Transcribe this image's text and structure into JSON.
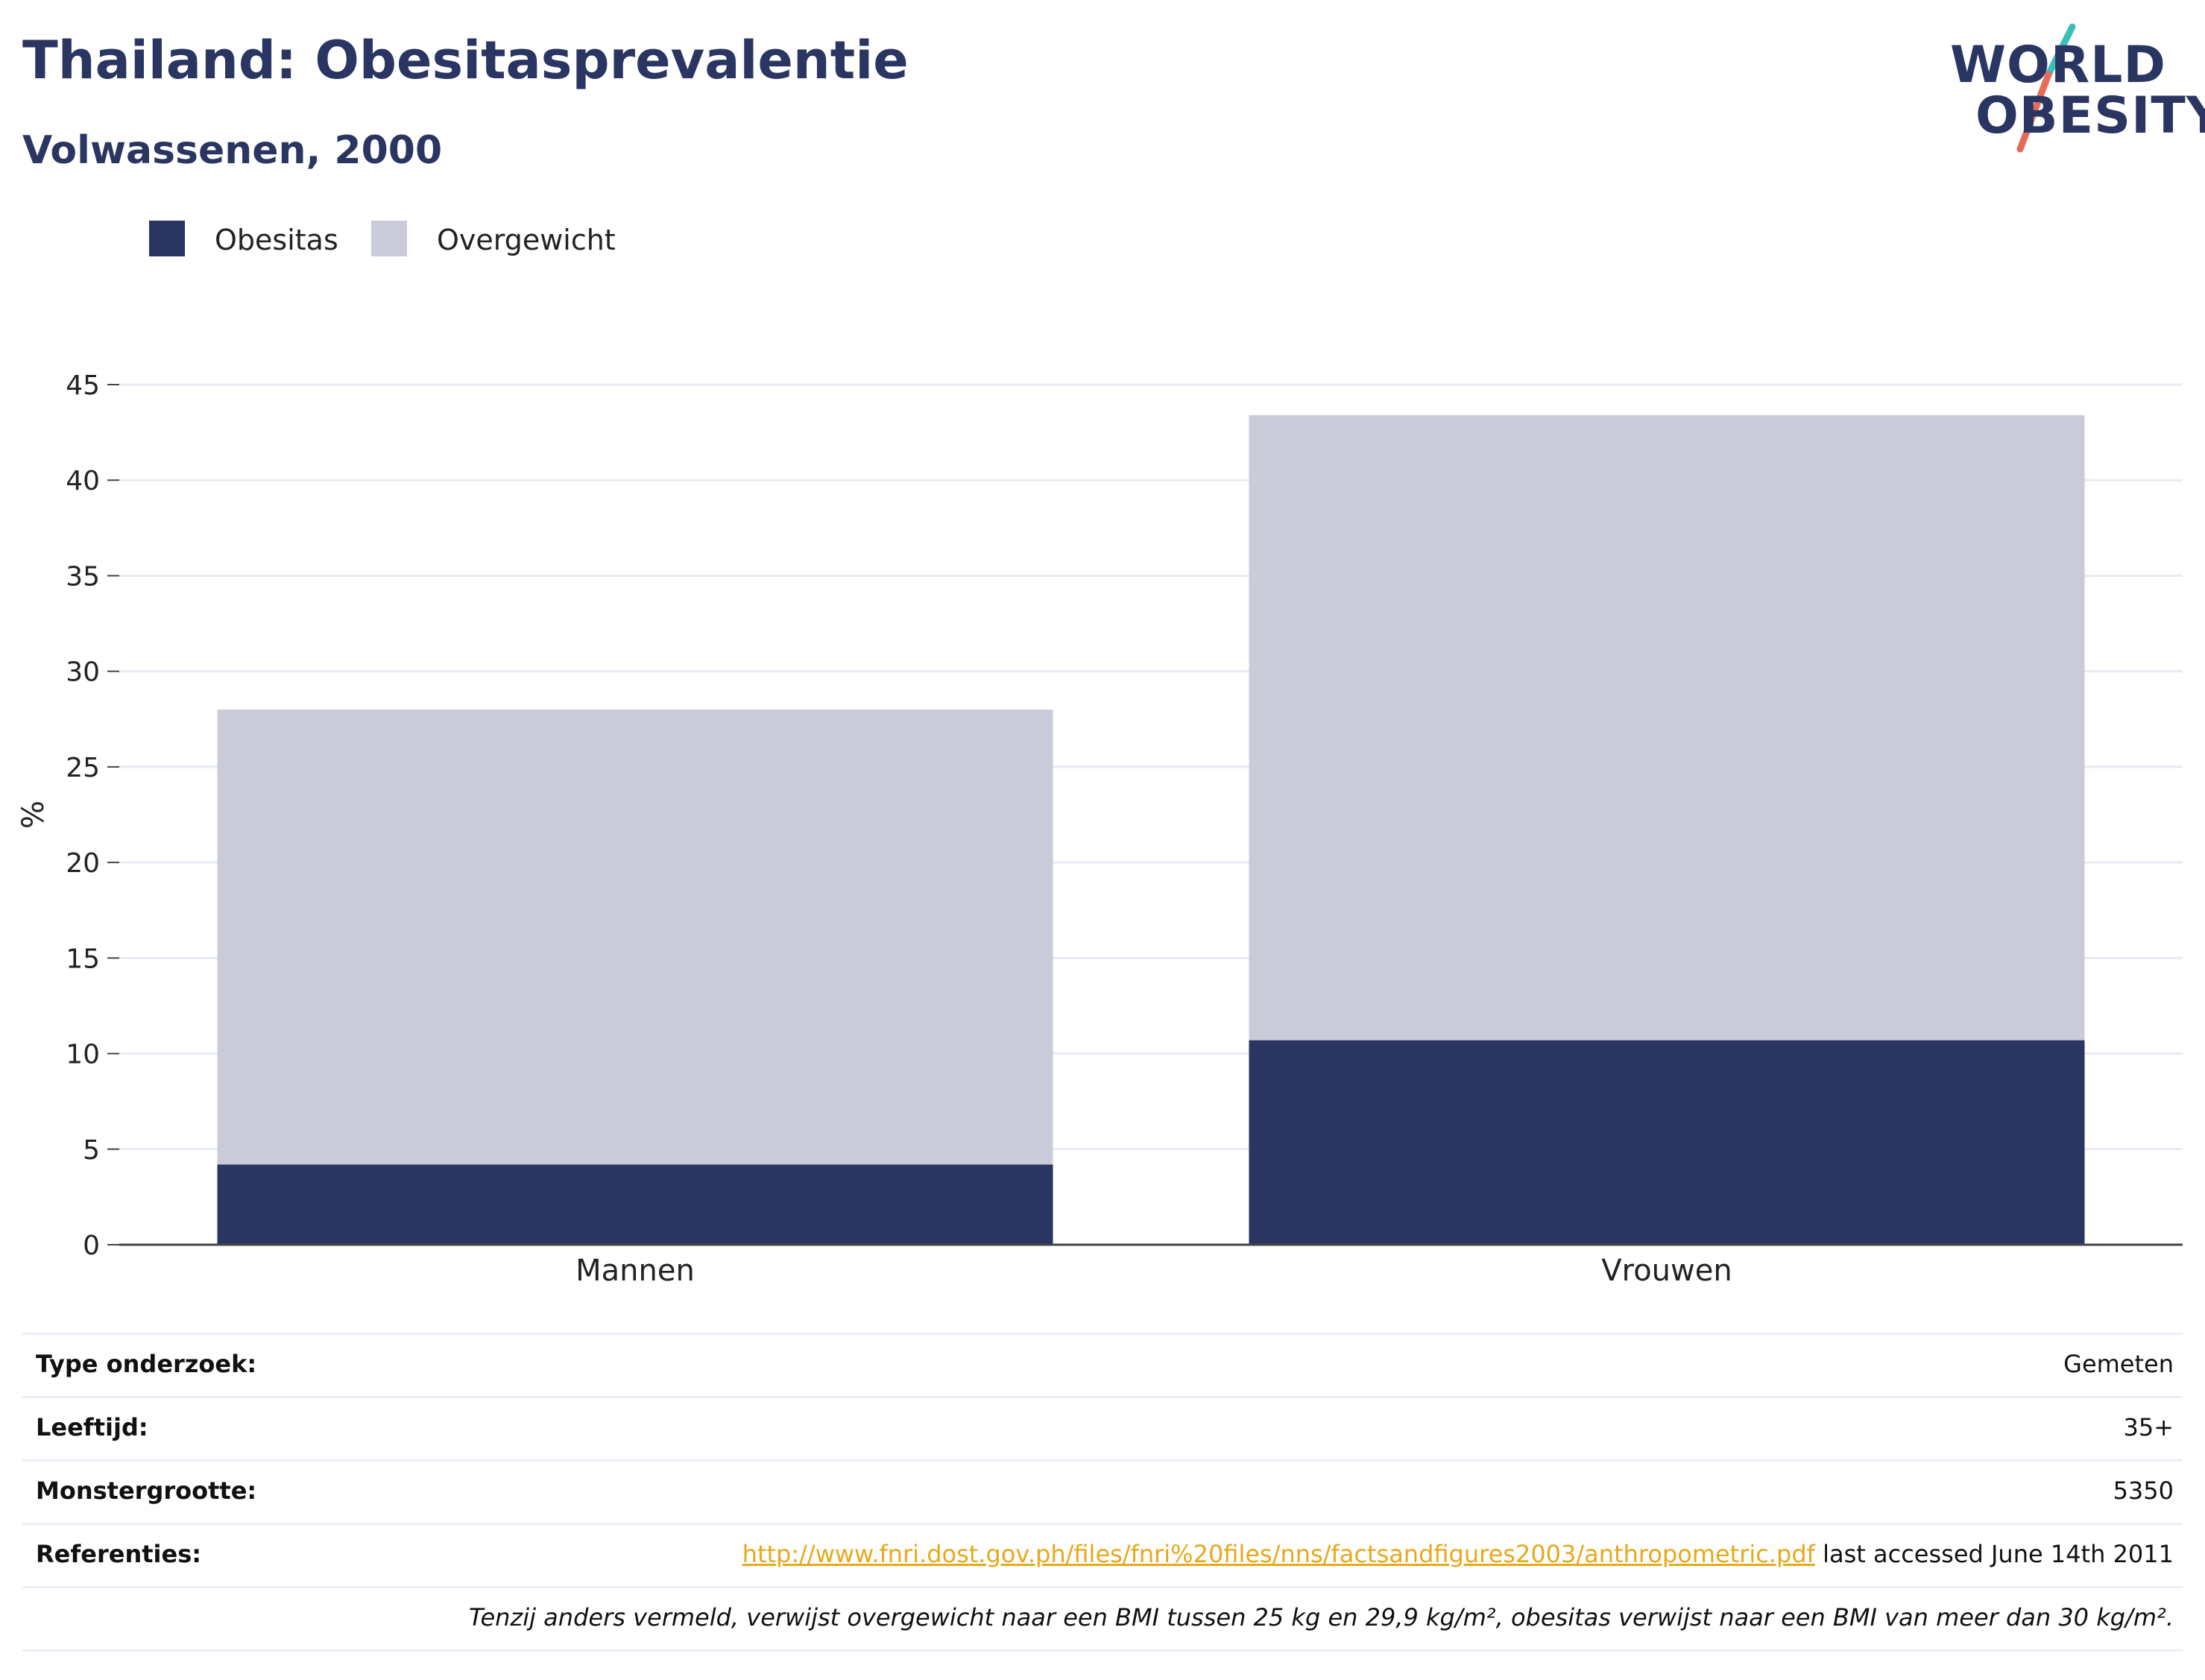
{
  "header": {
    "title": "Thailand: Obesitasprevalentie",
    "subtitle": "Volwassenen, 2000"
  },
  "logo": {
    "line1": "WORLD",
    "line2": "OBESITY"
  },
  "legend": [
    {
      "label": "Obesitas",
      "color": "#2a3561"
    },
    {
      "label": "Overgewicht",
      "color": "#c9ccd8"
    }
  ],
  "chart_data": {
    "type": "bar",
    "stacked": true,
    "categories": [
      "Mannen",
      "Vrouwen"
    ],
    "series": [
      {
        "name": "Obesitas",
        "color": "#2a3561",
        "values": [
          4.2,
          10.7
        ]
      },
      {
        "name": "Overgewicht",
        "color": "#c9ccd8",
        "values": [
          23.8,
          32.7
        ]
      }
    ],
    "totals": [
      28.0,
      43.4
    ],
    "ylabel": "%",
    "xlabel": "",
    "ylim": [
      0,
      45
    ],
    "yticks": [
      0,
      5,
      10,
      15,
      20,
      25,
      30,
      35,
      40,
      45
    ],
    "grid": true,
    "legend_position": "top-left"
  },
  "info": {
    "rows": [
      {
        "label": "Type onderzoek:",
        "value": "Gemeten"
      },
      {
        "label": "Leeftijd:",
        "value": "35+"
      },
      {
        "label": "Monstergrootte:",
        "value": "5350"
      }
    ],
    "references": {
      "label": "Referenties:",
      "link": "http://www.fnri.dost.gov.ph/files/fnri%20files/nns/factsandfigures2003/anthropometric.pdf",
      "suffix": " last accessed June 14th 2011"
    },
    "note": "Tenzij anders vermeld, verwijst overgewicht naar een BMI tussen 25 kg en 29,9 kg/m², obesitas verwijst naar een BMI van meer dan 30 kg/m²."
  }
}
